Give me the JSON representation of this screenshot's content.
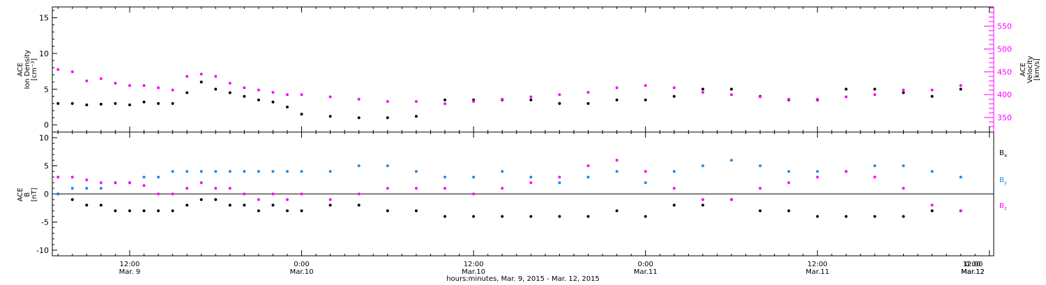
{
  "title": "",
  "x_axis": {
    "label": "hours:minutes, Mar.  9, 2015 - Mar. 12, 2015",
    "range_hours_from_mar9_0000": [
      6.6,
      72.3
    ],
    "ticks": [
      {
        "time": "12:00",
        "date": "Mar. 9"
      },
      {
        "time": "0:00",
        "date": "Mar.10"
      },
      {
        "time": "12:00",
        "date": "Mar.10"
      },
      {
        "time": "0:00",
        "date": "Mar.11"
      },
      {
        "time": "12:00",
        "date": "Mar.11"
      },
      {
        "time": "0:00",
        "date": "Mar.12"
      },
      {
        "time": "12:00",
        "date": "Mar.12"
      }
    ]
  },
  "colors": {
    "axis": "#000000",
    "density": "#000000",
    "velocity": "#ff00ff",
    "bx": "#000000",
    "by": "#1e88e5",
    "bz": "#ff00ff"
  },
  "chart_data": [
    {
      "type": "scatter",
      "panel": "top",
      "ylabel_left": [
        "ACE",
        "Ion Density",
        "[cm⁻³]"
      ],
      "ylabel_right": [
        "ACE",
        "Velocity",
        "[km/s]"
      ],
      "y_left_range": [
        -1,
        16.5
      ],
      "y_left_ticks": [
        "0",
        "5",
        "10",
        "15"
      ],
      "y_right_range": [
        318,
        592
      ],
      "y_right_ticks": [
        "350",
        "400",
        "450",
        "500",
        "550"
      ],
      "x_hours": [
        7,
        8,
        9,
        10,
        11,
        12,
        13,
        14,
        15,
        16,
        17,
        18,
        19,
        20,
        21,
        22,
        23,
        24,
        26,
        28,
        30,
        32,
        34,
        36,
        38,
        40,
        42,
        44,
        46,
        48,
        50,
        52,
        54,
        56,
        58,
        60,
        62,
        64,
        66,
        68,
        70
      ],
      "series": [
        {
          "name": "Ion Density",
          "axis": "left",
          "values": [
            3,
            3,
            2.8,
            2.9,
            3,
            2.8,
            3.2,
            3,
            3,
            4.5,
            6,
            5,
            4.5,
            4,
            3.5,
            3.2,
            2.5,
            1.5,
            1.2,
            1,
            1,
            1.2,
            3.5,
            3.5,
            3.5,
            3.5,
            3,
            3,
            3.5,
            3.5,
            4,
            5,
            5,
            4,
            3.5,
            3.5,
            5,
            5,
            4.5,
            4,
            5
          ]
        },
        {
          "name": "Velocity",
          "axis": "right",
          "values": [
            455,
            450,
            430,
            435,
            425,
            420,
            420,
            415,
            410,
            440,
            445,
            440,
            425,
            415,
            410,
            405,
            400,
            400,
            395,
            390,
            385,
            385,
            380,
            385,
            390,
            395,
            400,
            405,
            415,
            420,
            415,
            405,
            400,
            395,
            390,
            390,
            395,
            400,
            410,
            410,
            420
          ]
        }
      ]
    },
    {
      "type": "scatter",
      "panel": "bottom",
      "ylabel_left": [
        "ACE",
        "B",
        "[nT]"
      ],
      "y_range": [
        -11,
        11
      ],
      "y_ticks": [
        "-10",
        "-5",
        "0",
        "5",
        "10"
      ],
      "x_hours": [
        7,
        8,
        9,
        10,
        11,
        12,
        13,
        14,
        15,
        16,
        17,
        18,
        19,
        20,
        21,
        22,
        23,
        24,
        26,
        28,
        30,
        32,
        34,
        36,
        38,
        40,
        42,
        44,
        46,
        48,
        50,
        52,
        54,
        56,
        58,
        60,
        62,
        64,
        66,
        68,
        70
      ],
      "series": [
        {
          "name": "Bx",
          "label_main": "B",
          "label_sub": "x",
          "values": [
            0,
            -1,
            -2,
            -2,
            -3,
            -3,
            -3,
            -3,
            -3,
            -2,
            -1,
            -1,
            -2,
            -2,
            -3,
            -2,
            -3,
            -3,
            -2,
            -2,
            -3,
            -3,
            -4,
            -4,
            -4,
            -4,
            -4,
            -4,
            -3,
            -4,
            -2,
            -2,
            -1,
            -3,
            -3,
            -4,
            -4,
            -4,
            -4,
            -3,
            -3
          ]
        },
        {
          "name": "By",
          "label_main": "B",
          "label_sub": "y",
          "values": [
            0,
            1,
            1,
            1,
            2,
            2,
            3,
            3,
            4,
            4,
            4,
            4,
            4,
            4,
            4,
            4,
            4,
            4,
            4,
            5,
            5,
            4,
            3,
            3,
            4,
            3,
            2,
            3,
            4,
            2,
            4,
            5,
            6,
            5,
            4,
            4,
            4,
            5,
            5,
            4,
            3
          ]
        },
        {
          "name": "Bz",
          "label_main": "B",
          "label_sub": "z",
          "values": [
            3,
            3,
            2.5,
            2,
            2,
            2,
            1.5,
            0,
            0,
            1,
            2,
            1,
            1,
            0,
            -1,
            0,
            -1,
            0,
            -1,
            0,
            1,
            1,
            1,
            0,
            1,
            2,
            3,
            5,
            6,
            4,
            1,
            -1,
            -1,
            1,
            2,
            3,
            4,
            3,
            1,
            -2,
            -3
          ]
        }
      ]
    }
  ]
}
